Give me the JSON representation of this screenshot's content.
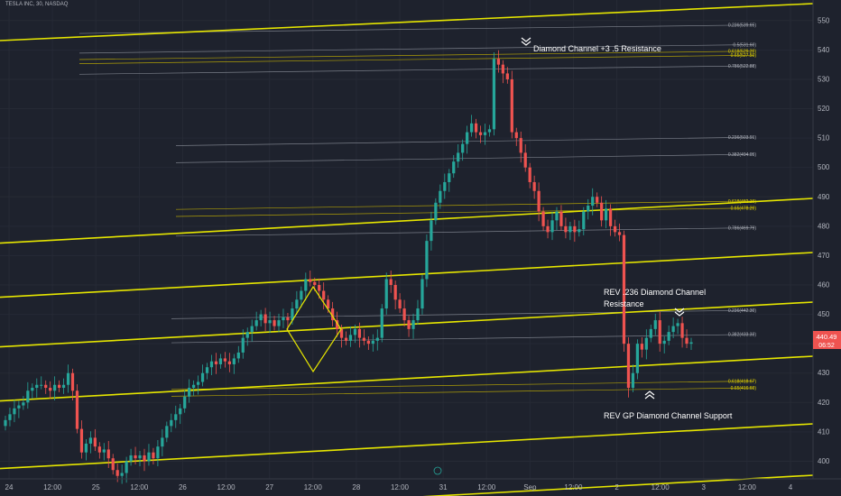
{
  "header": {
    "symbol_text": "TESLA INC, 30, NASDAQ"
  },
  "price_axis": {
    "ticks": [
      400,
      410,
      420,
      430,
      440,
      450,
      460,
      470,
      480,
      490,
      500,
      510,
      520,
      530,
      540,
      550
    ],
    "last_price": "440.49",
    "countdown": "06:52",
    "last_price_color": "#ef5350"
  },
  "time_axis": {
    "labels": [
      "24",
      "12:00",
      "25",
      "12:00",
      "26",
      "12:00",
      "27",
      "12:00",
      "28",
      "12:00",
      "31",
      "12:00",
      "Sep",
      "12:00",
      "2",
      "12:00",
      "3",
      "12:00",
      "4"
    ]
  },
  "colors": {
    "up": "#26a69a",
    "down": "#ef5350",
    "channel": "#e6e600",
    "fib_line": "#8a8e99",
    "fib_gold": "#c8b400",
    "background": "#1e222d"
  },
  "chart_data": {
    "type": "candlestick",
    "title": "",
    "ylim": [
      394,
      557
    ],
    "candles_close": [
      414,
      416,
      418,
      419,
      420,
      424,
      425,
      426,
      426,
      425,
      424,
      426,
      425,
      426,
      430,
      424,
      411,
      403,
      406,
      408,
      405,
      403,
      404,
      401,
      397,
      395,
      396,
      400,
      402,
      401,
      402,
      400,
      403,
      401,
      405,
      408,
      412,
      414,
      416,
      418,
      422,
      425,
      426,
      427,
      430,
      432,
      434,
      433,
      435,
      434,
      433,
      435,
      437,
      442,
      444,
      446,
      448,
      450,
      447,
      448,
      446,
      448,
      449,
      448,
      452,
      455,
      458,
      462,
      461,
      460,
      458,
      455,
      452,
      448,
      445,
      442,
      441,
      443,
      445,
      442,
      441,
      440,
      441,
      442,
      452,
      462,
      460,
      455,
      452,
      448,
      445,
      448,
      452,
      462,
      475,
      482,
      488,
      492,
      495,
      498,
      502,
      505,
      508,
      512,
      515,
      512,
      511,
      512,
      513,
      537,
      535,
      532,
      530,
      512,
      510,
      505,
      500,
      495,
      492,
      485,
      480,
      478,
      482,
      485,
      480,
      478,
      480,
      478,
      479,
      485,
      487,
      490,
      488,
      482,
      486,
      480,
      478,
      477,
      440,
      425,
      430,
      440,
      438,
      442,
      445,
      448,
      440,
      441,
      444,
      446,
      447,
      442,
      440,
      440.49
    ],
    "annotations": [
      {
        "text": "Diamond Channel +3 .5 Resistance",
        "price": 540.5
      },
      {
        "text": "REV .236 Diamond Channel",
        "price": 457.5
      },
      {
        "text": "Resistance",
        "price": 453.5
      },
      {
        "text": "REV GP Diamond Channel Support",
        "price": 415.5
      }
    ],
    "fib_labels": [
      {
        "text": "0.236(539.65)",
        "price": 548.5
      },
      {
        "text": "0.5(531.60)",
        "price": 541.8
      },
      {
        "text": "0.618(529.20)",
        "price": 539.6
      },
      {
        "text": "0.65(527.50)",
        "price": 538.2
      },
      {
        "text": "0.786(522.88)",
        "price": 534.6
      },
      {
        "text": "0.236(503.91)",
        "price": 510.3
      },
      {
        "text": "0.382(494.05)",
        "price": 504.5
      },
      {
        "text": "0.618(482.19)",
        "price": 488.6
      },
      {
        "text": "0.65(478.20)",
        "price": 486.2
      },
      {
        "text": "0.786(469.79)",
        "price": 479.5
      },
      {
        "text": "0.236(442.30)",
        "price": 451.4
      },
      {
        "text": "0.382(433.33)",
        "price": 443.2
      },
      {
        "text": "0.618(418.67)",
        "price": 427.3
      },
      {
        "text": "0.65(416.60)",
        "price": 425.0
      }
    ]
  }
}
